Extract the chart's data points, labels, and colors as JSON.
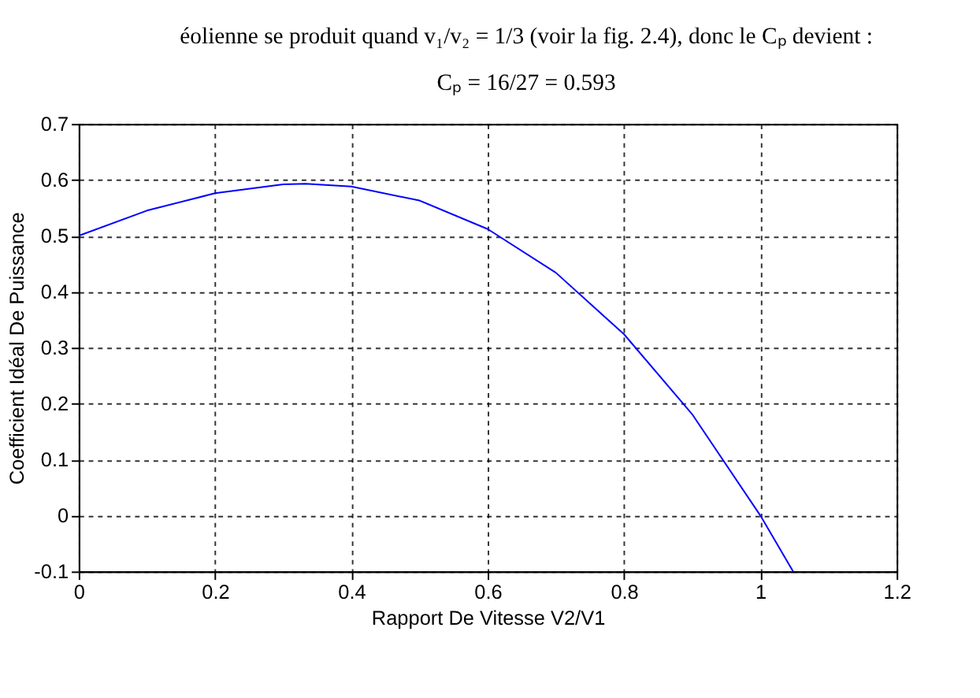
{
  "chart_data": {
    "type": "line",
    "xlabel": "Rapport De Vitesse V2/V1",
    "ylabel": "Coefficient Idéal De Puissance",
    "annotations": [
      "éolienne se produit quand v₁/v₂ = 1/3 (voir la fig. 2.4), donc le Cₚ devient :",
      "Cₚ = 16/27 = 0.593"
    ],
    "series": [
      {
        "color": "#0000ff",
        "x": [
          0,
          0.1,
          0.2,
          0.3,
          0.333,
          0.4,
          0.5,
          0.6,
          0.7,
          0.8,
          0.9,
          1.0,
          1.048
        ],
        "values": [
          0.5,
          0.545,
          0.576,
          0.592,
          0.593,
          0.588,
          0.563,
          0.512,
          0.434,
          0.324,
          0.181,
          0.0,
          -0.1
        ]
      }
    ],
    "xlim": [
      0,
      1.2
    ],
    "xticks": [
      0,
      0.2,
      0.4,
      0.6,
      0.8,
      1,
      1.2
    ],
    "ylim": [
      -0.1,
      0.7
    ],
    "yticks": [
      -0.1,
      0,
      0.1,
      0.2,
      0.3,
      0.4,
      0.5,
      0.6,
      0.7
    ],
    "grid": true,
    "line_style": "solid",
    "marker": "none"
  }
}
